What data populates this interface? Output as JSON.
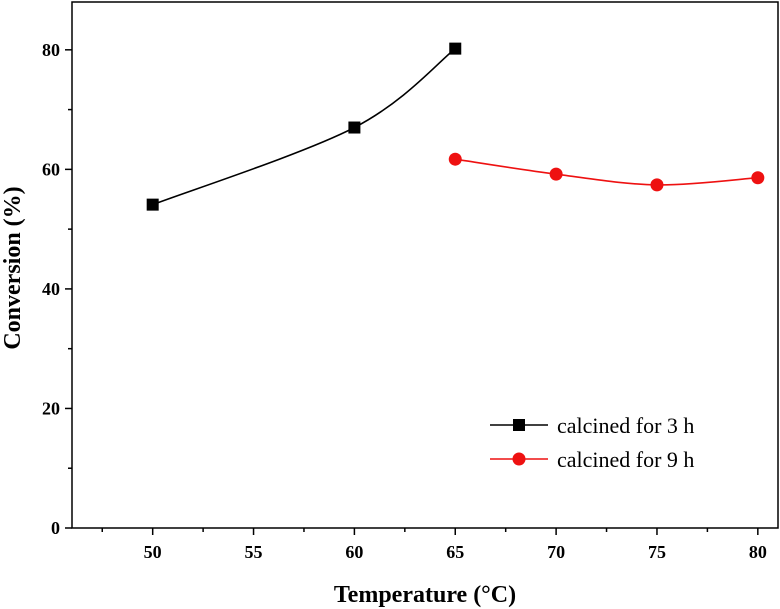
{
  "chart_data": {
    "type": "line",
    "title": "",
    "xlabel": "Temperature (°C)",
    "ylabel": "Conversion (%)",
    "xlim": [
      46,
      81
    ],
    "ylim": [
      0,
      88
    ],
    "xticks": [
      50,
      55,
      60,
      65,
      70,
      75,
      80
    ],
    "yticks": [
      0,
      20,
      40,
      60,
      80
    ],
    "xtick_labels": [
      "50",
      "55",
      "60",
      "65",
      "70",
      "75",
      "80"
    ],
    "ytick_labels": [
      "0",
      "20",
      "40",
      "60",
      "80"
    ],
    "grid": false,
    "legend_position": "bottom-right",
    "series": [
      {
        "name": "calcined for 3 h",
        "marker": "square",
        "color": "#000000",
        "x": [
          50,
          60,
          65
        ],
        "y": [
          54.1,
          67.0,
          80.2
        ]
      },
      {
        "name": "calcined for 9 h",
        "marker": "circle",
        "color": "#ee1111",
        "x": [
          65,
          70,
          75,
          80
        ],
        "y": [
          61.7,
          59.2,
          57.4,
          58.6
        ]
      }
    ]
  }
}
